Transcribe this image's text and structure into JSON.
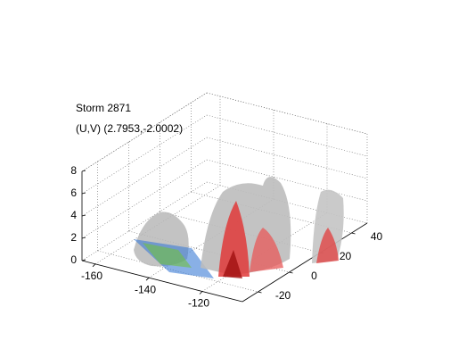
{
  "chart_data": {
    "type": "isosurface3d",
    "title": "Storm 2871",
    "subtitle": "(U,V) (2.7953,-2.0002)",
    "xlim": [
      -165,
      -105
    ],
    "xticks": [
      -160,
      -140,
      -120
    ],
    "ylim": [
      -30,
      50
    ],
    "yticks": [
      -20,
      0,
      20,
      40
    ],
    "zlim": [
      0,
      8
    ],
    "zticks": [
      0,
      2,
      4,
      6,
      8
    ],
    "grid": true
  }
}
